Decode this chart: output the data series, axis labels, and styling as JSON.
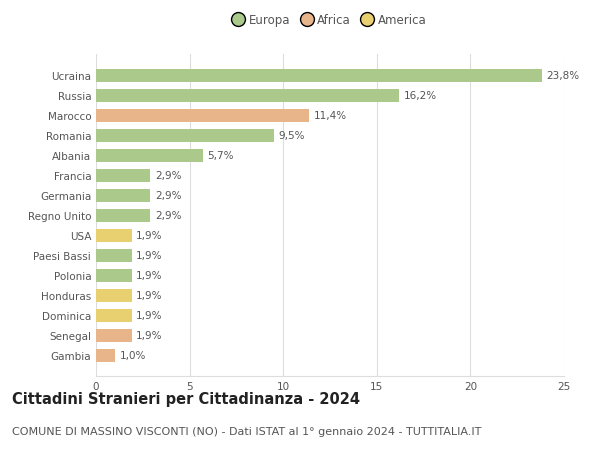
{
  "categories": [
    "Ucraina",
    "Russia",
    "Marocco",
    "Romania",
    "Albania",
    "Francia",
    "Germania",
    "Regno Unito",
    "USA",
    "Paesi Bassi",
    "Polonia",
    "Honduras",
    "Dominica",
    "Senegal",
    "Gambia"
  ],
  "values": [
    23.8,
    16.2,
    11.4,
    9.5,
    5.7,
    2.9,
    2.9,
    2.9,
    1.9,
    1.9,
    1.9,
    1.9,
    1.9,
    1.9,
    1.0
  ],
  "labels": [
    "23,8%",
    "16,2%",
    "11,4%",
    "9,5%",
    "5,7%",
    "2,9%",
    "2,9%",
    "2,9%",
    "1,9%",
    "1,9%",
    "1,9%",
    "1,9%",
    "1,9%",
    "1,9%",
    "1,0%"
  ],
  "bar_colors": [
    "#aac98a",
    "#aac98a",
    "#e8b48a",
    "#aac98a",
    "#aac98a",
    "#aac98a",
    "#aac98a",
    "#aac98a",
    "#e8d070",
    "#aac98a",
    "#aac98a",
    "#e8d070",
    "#e8d070",
    "#e8b48a",
    "#e8b48a"
  ],
  "legend_labels": [
    "Europa",
    "Africa",
    "America"
  ],
  "legend_colors": [
    "#aac98a",
    "#e8b48a",
    "#e8d070"
  ],
  "title": "Cittadini Stranieri per Cittadinanza - 2024",
  "subtitle": "COMUNE DI MASSINO VISCONTI (NO) - Dati ISTAT al 1° gennaio 2024 - TUTTITALIA.IT",
  "xlim": [
    0,
    25
  ],
  "xticks": [
    0,
    5,
    10,
    15,
    20,
    25
  ],
  "background_color": "#ffffff",
  "grid_color": "#dddddd",
  "bar_height": 0.65,
  "title_fontsize": 10.5,
  "subtitle_fontsize": 8,
  "label_fontsize": 7.5,
  "tick_fontsize": 7.5,
  "legend_fontsize": 8.5
}
